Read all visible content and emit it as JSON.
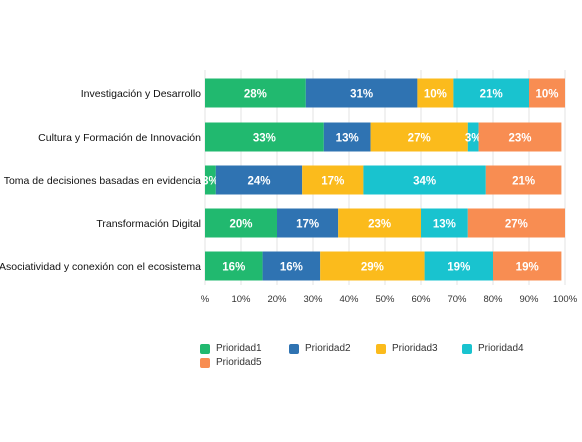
{
  "chart_data": {
    "type": "bar",
    "orientation": "horizontal",
    "stacked": true,
    "categories": [
      "Investigación y Desarrollo",
      "Cultura y Formación de Innovación",
      "Toma de decisiones basadas en evidencia",
      "Transformación Digital",
      "Asociatividad y conexión con el ecosistema"
    ],
    "series": [
      {
        "name": "Prioridad1",
        "color": "#21b96f",
        "values": [
          28,
          33,
          3,
          20,
          16
        ]
      },
      {
        "name": "Prioridad2",
        "color": "#2f73b2",
        "values": [
          31,
          13,
          24,
          17,
          16
        ]
      },
      {
        "name": "Prioridad3",
        "color": "#fbbb1c",
        "values": [
          10,
          27,
          17,
          23,
          29
        ]
      },
      {
        "name": "Prioridad4",
        "color": "#19c3cf",
        "values": [
          21,
          3,
          34,
          13,
          19
        ]
      },
      {
        "name": "Prioridad5",
        "color": "#f88d52",
        "values": [
          10,
          23,
          21,
          27,
          19
        ]
      }
    ],
    "data_labels": [
      [
        "28%",
        "31%",
        "10%",
        "21%",
        "10%"
      ],
      [
        "33%",
        "13%",
        "27%",
        "3%",
        "23%"
      ],
      [
        "3%",
        "24%",
        "17%",
        "34%",
        "21%"
      ],
      [
        "20%",
        "17%",
        "23%",
        "13%",
        "27%"
      ],
      [
        "16%",
        "16%",
        "29%",
        "19%",
        "19%"
      ]
    ],
    "xaxis": {
      "ticks": [
        0,
        10,
        20,
        30,
        40,
        50,
        60,
        70,
        80,
        90,
        100
      ],
      "tick_labels": [
        "%",
        "10%",
        "20%",
        "30%",
        "40%",
        "50%",
        "60%",
        "70%",
        "80%",
        "90%",
        "100%"
      ]
    },
    "xlim": [
      0,
      100
    ],
    "title": "",
    "xlabel": "",
    "ylabel": "",
    "grid": true,
    "legend": "bottom"
  }
}
